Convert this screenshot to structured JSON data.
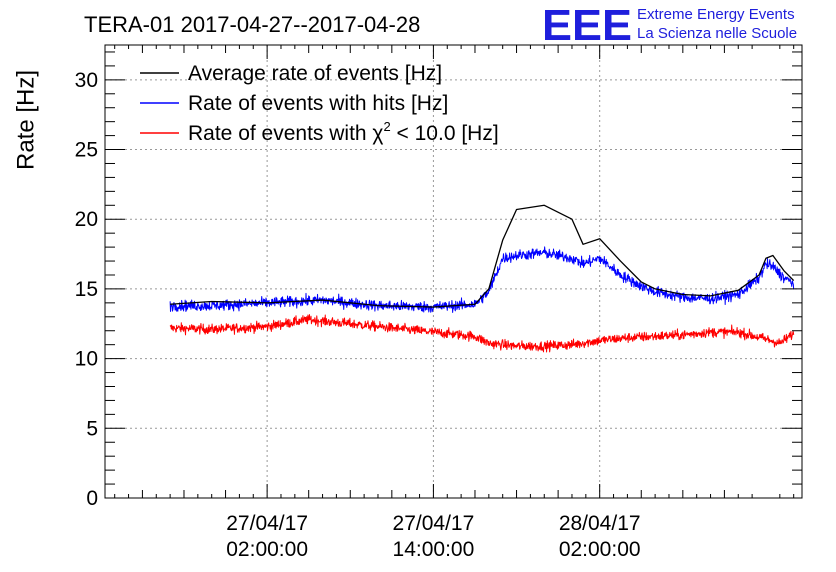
{
  "header": {
    "title": "TERA-01 2017-04-27--2017-04-28",
    "logo_mark": "EEE",
    "logo_line1": "Extreme Energy Events",
    "logo_line2": "La Scienza nelle Scuole"
  },
  "colors": {
    "average": "#000000",
    "hits": "#0000ff",
    "chi2": "#ff0000",
    "logo": "#1e1edc",
    "grid": "#999999"
  },
  "chart_data": {
    "type": "line",
    "title": "TERA-01 2017-04-27--2017-04-28",
    "ylabel": "Rate [Hz]",
    "xlabel": "",
    "ylim": [
      0,
      32.5
    ],
    "xlim_hours": [
      -9.7,
      40.6
    ],
    "x_unit": "hours since 27/04/17 00:00:00",
    "y_ticks": [
      0,
      5,
      10,
      15,
      20,
      25,
      30
    ],
    "x_ticks": [
      {
        "hour": 2,
        "date": "27/04/17",
        "time": "02:00:00"
      },
      {
        "hour": 14,
        "date": "27/04/17",
        "time": "14:00:00"
      },
      {
        "hour": 26,
        "date": "28/04/17",
        "time": "02:00:00"
      }
    ],
    "grid": true,
    "legend_position": "top-left",
    "legend": [
      {
        "key": "average",
        "pre": "Average rate of events [Hz]",
        "sup": "",
        "post": ""
      },
      {
        "key": "hits",
        "pre": "Rate of events with hits [Hz]",
        "sup": "",
        "post": ""
      },
      {
        "key": "chi2",
        "pre": "Rate of events with χ",
        "sup": "2",
        "post": " < 10.0 [Hz]"
      }
    ],
    "series": [
      {
        "name": "Average rate of events [Hz]",
        "key": "average",
        "x": [
          -5,
          -2,
          2,
          6,
          10,
          14,
          17,
          18,
          19,
          20,
          22,
          24,
          24.8,
          26,
          27.5,
          29,
          30,
          32,
          34,
          36,
          37.5,
          38,
          38.5,
          39.3,
          40
        ],
        "y": [
          13.9,
          14.1,
          14.0,
          14.2,
          13.8,
          13.7,
          13.9,
          15.0,
          18.5,
          20.7,
          21.0,
          20.0,
          18.2,
          18.6,
          17.0,
          15.5,
          15.0,
          14.6,
          14.5,
          14.9,
          16.0,
          17.2,
          17.4,
          16.3,
          15.6
        ]
      },
      {
        "name": "Rate of events with hits [Hz]",
        "key": "hits",
        "noise": 0.55,
        "x": [
          -5,
          -2,
          2,
          6,
          10,
          14,
          17,
          18,
          19,
          20,
          22,
          24,
          24.8,
          26,
          27.5,
          29,
          30,
          32,
          34,
          36,
          37.5,
          38,
          38.5,
          39.3,
          40
        ],
        "y": [
          13.8,
          13.8,
          14.0,
          14.2,
          13.8,
          13.7,
          13.9,
          14.8,
          17.2,
          17.4,
          17.6,
          17.2,
          16.8,
          17.2,
          16.0,
          15.2,
          14.8,
          14.4,
          14.3,
          14.6,
          15.8,
          16.8,
          16.6,
          15.8,
          15.4
        ]
      },
      {
        "name": "Rate of events with chi2 < 10.0 [Hz]",
        "key": "chi2",
        "noise": 0.5,
        "x": [
          -5,
          -2,
          2,
          5,
          6,
          8,
          10,
          14,
          17,
          18,
          20,
          22,
          24,
          26,
          28,
          30,
          32,
          34,
          36,
          38,
          39,
          40
        ],
        "y": [
          12.2,
          12.1,
          12.3,
          12.8,
          12.7,
          12.5,
          12.3,
          11.9,
          11.6,
          11.1,
          10.9,
          10.9,
          11.0,
          11.3,
          11.5,
          11.6,
          11.7,
          11.9,
          11.9,
          11.4,
          11.1,
          11.8
        ]
      }
    ]
  }
}
